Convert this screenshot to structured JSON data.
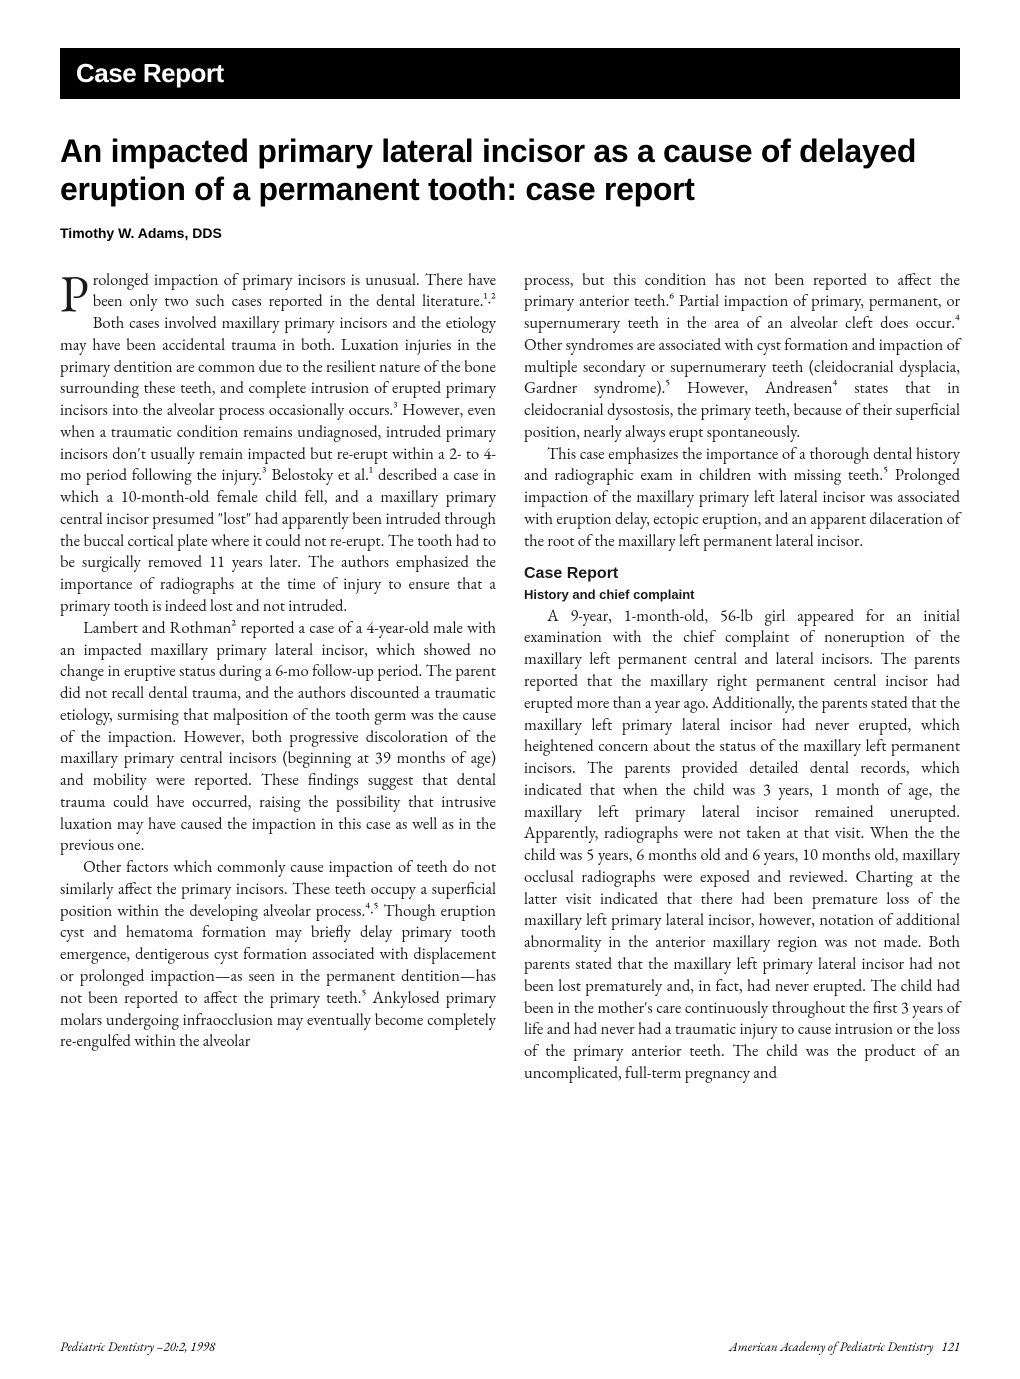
{
  "banner": {
    "label": "Case Report"
  },
  "title": "An impacted primary lateral incisor as a cause of delayed eruption of a permanent tooth: case report",
  "author": "Timothy W. Adams, DDS",
  "body": {
    "col1": {
      "p1_drop": "P",
      "p1_rest": "rolonged impaction of primary incisors is unusual. There have been only two such cases reported in the dental literature.¹·² Both cases involved maxillary primary incisors and the etiology may have been accidental trauma in both. Luxation injuries in the primary dentition are common due to the resilient nature of the bone surrounding these teeth, and complete intrusion of erupted primary incisors into the alveolar process occasionally occurs.³ However, even when a traumatic condition remains undiagnosed, intruded primary incisors don't usually remain impacted but re-erupt within a 2- to 4-mo period following the injury.³ Belostoky et al.¹ described a case in which a 10-month-old female child fell, and a maxillary primary central incisor presumed \"lost\" had apparently been intruded through the buccal cortical plate where it could not re-erupt. The tooth had to be surgically removed 11 years later. The authors emphasized the importance of radiographs at the time of injury to ensure that a primary tooth is indeed lost and not intruded.",
      "p2": "Lambert and Rothman² reported a case of a 4-year-old male with an impacted maxillary primary lateral incisor, which showed no change in eruptive status during a 6-mo follow-up period. The parent did not recall dental trauma, and the authors discounted a traumatic etiology, surmising that malposition of the tooth germ was the cause of the impaction. However, both progressive discoloration of the maxillary primary central incisors (beginning at 39 months of age) and mobility were reported. These findings suggest that dental trauma could have occurred, raising the possibility that intrusive luxation may have caused the impaction in this case as well as in the previous one.",
      "p3": "Other factors which commonly cause impaction of teeth do not similarly affect the primary incisors. These teeth occupy a superficial position within the developing alveolar process.⁴·⁵ Though eruption cyst and hematoma formation may briefly delay primary tooth emergence, dentigerous cyst formation associated with displacement or prolonged impaction—as seen in the permanent dentition—has not been reported to affect the primary teeth.⁵ Ankylosed primary molars undergoing infraocclusion may eventually become completely re-engulfed within the alveolar"
    },
    "col2": {
      "p1": "process, but this condition has not been reported to affect the primary anterior teeth.⁶ Partial impaction of primary, permanent, or supernumerary teeth in the area of an alveolar cleft does occur.⁴ Other syndromes are associated with cyst formation and impaction of multiple secondary or supernumerary teeth (cleidocranial dysplacia, Gardner syndrome).⁵ However, Andreasen⁴ states that in cleidocranial dysostosis, the primary teeth, because of their superficial position, nearly always erupt spontaneously.",
      "p2": "This case emphasizes the importance of a thorough dental history and radiographic exam in children with missing teeth.⁵ Prolonged impaction of the maxillary primary left lateral incisor was associated with eruption delay, ectopic eruption, and an apparent dilaceration of the root of the maxillary left permanent lateral incisor.",
      "section_head": "Case Report",
      "subhead": "History and chief complaint",
      "p3": "A 9-year, 1-month-old, 56-lb girl appeared for an initial examination with the chief complaint of noneruption of the maxillary left permanent central and lateral incisors. The parents reported that the maxillary right permanent central incisor had erupted more than a year ago. Additionally, the parents stated that the maxillary left primary lateral incisor had never erupted, which heightened concern about the status of the maxillary left permanent incisors. The parents provided detailed dental records, which indicated that when the child was 3 years, 1 month of age, the maxillary left primary lateral incisor remained unerupted. Apparently, radiographs were not taken at that visit. When the the child was 5 years, 6 months old and 6 years, 10 months old, maxillary occlusal radiographs were exposed and reviewed. Charting at the latter visit indicated that there had been premature loss of the maxillary left primary lateral incisor, however, notation of additional abnormality in the anterior maxillary region was not made. Both parents stated that the maxillary left primary lateral incisor had not been lost prematurely and, in fact, had never erupted. The child had been in the mother's care continuously throughout the first 3 years of life and had never had a traumatic injury to cause intrusion or the loss of the primary anterior teeth. The child was the product of an uncomplicated, full-term pregnancy and"
    }
  },
  "footer": {
    "left": "Pediatric Dentistry –20:2, 1998",
    "right": "American Academy of Pediatric Dentistry",
    "page": "121"
  },
  "style": {
    "bg": "#ffffff",
    "text": "#000000",
    "banner_bg": "#000000",
    "banner_fg": "#ffffff",
    "title_fontsize": 32,
    "body_fontsize": 16.5,
    "author_fontsize": 14,
    "footer_fontsize": 13,
    "line_height": 1.32,
    "column_gap": 28
  }
}
